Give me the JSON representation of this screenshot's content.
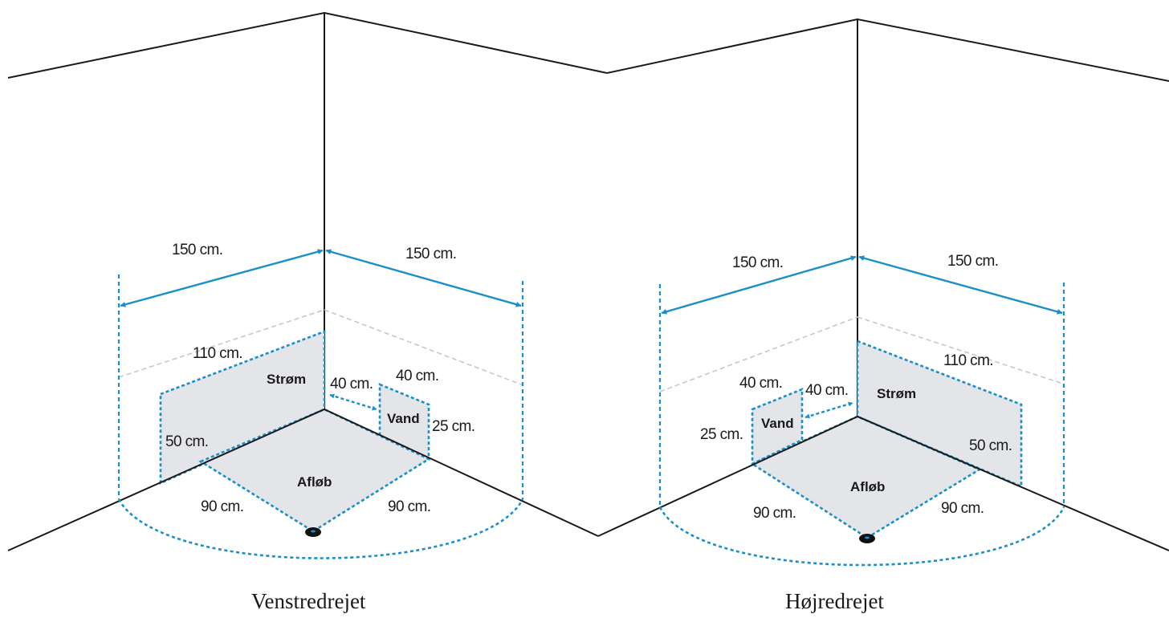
{
  "panels": [
    {
      "caption": "Venstredrejet",
      "dim_wall_left": "150 cm.",
      "dim_wall_right": "150 cm.",
      "dim_strom_width": "110 cm.",
      "dim_strom_height": "50 cm.",
      "label_strom": "Strøm",
      "dim_vand_offset": "40 cm.",
      "dim_vand_width": "40 cm.",
      "dim_vand_height": "25 cm.",
      "label_vand": "Vand",
      "dim_afloeb_left": "90 cm.",
      "dim_afloeb_right": "90 cm.",
      "label_afloeb": "Afløb"
    },
    {
      "caption": "Højredrejet",
      "dim_wall_left": "150 cm.",
      "dim_wall_right": "150 cm.",
      "dim_strom_width": "110 cm.",
      "dim_strom_height": "50 cm.",
      "label_strom": "Strøm",
      "dim_vand_offset": "40 cm.",
      "dim_vand_width": "40 cm.",
      "dim_vand_height": "25 cm.",
      "label_vand": "Vand",
      "dim_afloeb_left": "90 cm.",
      "dim_afloeb_right": "90 cm.",
      "label_afloeb": "Afløb"
    }
  ],
  "colors": {
    "dimension": "#1b8fc9",
    "zone_fill": "#e3e5e8",
    "line": "#1a1a1a",
    "guide_gray": "#c8c8c8"
  }
}
